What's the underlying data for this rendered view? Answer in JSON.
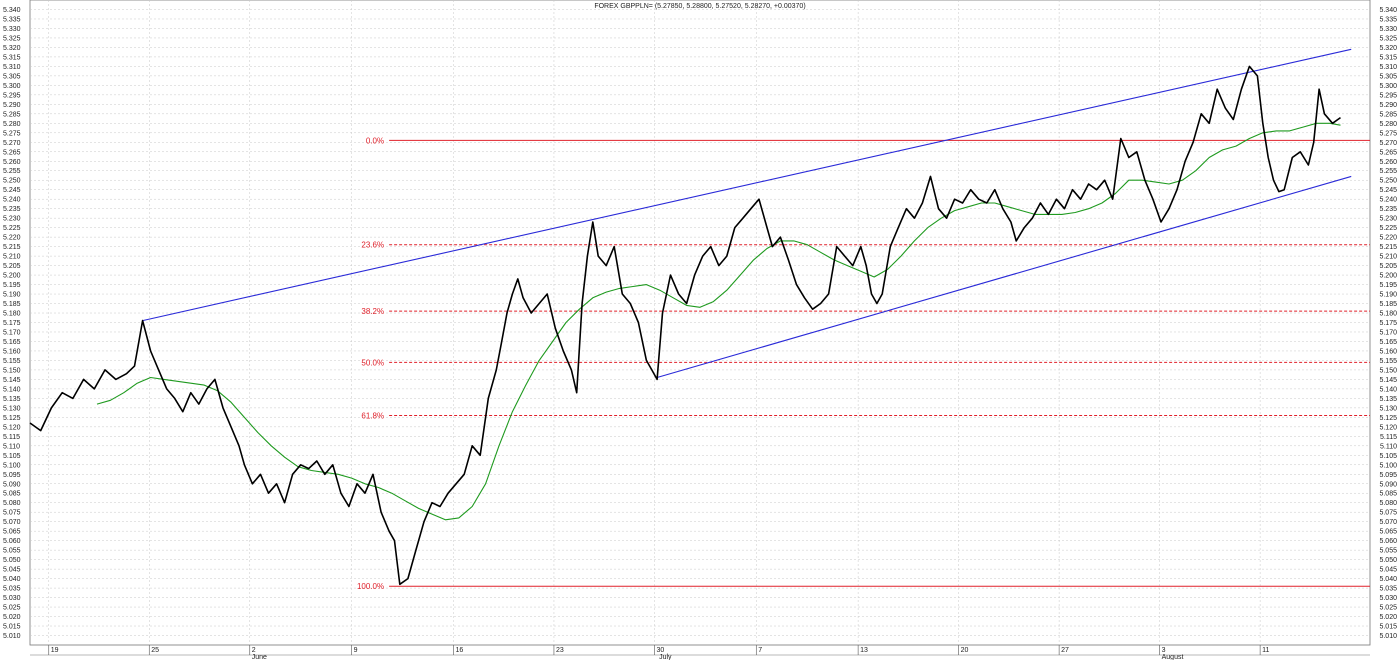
{
  "chart_data": {
    "type": "line",
    "title": "FOREX GBPPLN= (5.27850, 5.28800, 5.27520, 5.28270, +0.00370)",
    "ylim": [
      5.005,
      5.345
    ],
    "xlim": [
      0,
      100
    ],
    "y_ticks": [
      5.01,
      5.015,
      5.02,
      5.025,
      5.03,
      5.035,
      5.04,
      5.045,
      5.05,
      5.055,
      5.06,
      5.065,
      5.07,
      5.075,
      5.08,
      5.085,
      5.09,
      5.095,
      5.1,
      5.105,
      5.11,
      5.115,
      5.12,
      5.125,
      5.13,
      5.135,
      5.14,
      5.145,
      5.15,
      5.155,
      5.16,
      5.165,
      5.17,
      5.175,
      5.18,
      5.185,
      5.19,
      5.195,
      5.2,
      5.205,
      5.21,
      5.215,
      5.22,
      5.225,
      5.23,
      5.235,
      5.24,
      5.245,
      5.25,
      5.255,
      5.26,
      5.265,
      5.27,
      5.275,
      5.28,
      5.285,
      5.29,
      5.295,
      5.3,
      5.305,
      5.31,
      5.315,
      5.32,
      5.325,
      5.33,
      5.335,
      5.34
    ],
    "x_ticks": [
      {
        "x": 1.4,
        "label": "19"
      },
      {
        "x": 8.9,
        "label": "25"
      },
      {
        "x": 16.4,
        "label": "2"
      },
      {
        "x": 24.0,
        "label": "9"
      },
      {
        "x": 31.6,
        "label": "16"
      },
      {
        "x": 39.1,
        "label": "23"
      },
      {
        "x": 46.6,
        "label": "30"
      },
      {
        "x": 54.2,
        "label": "7"
      },
      {
        "x": 61.8,
        "label": "13"
      },
      {
        "x": 69.3,
        "label": "20"
      },
      {
        "x": 76.8,
        "label": "27"
      },
      {
        "x": 84.3,
        "label": "3"
      },
      {
        "x": 91.8,
        "label": "11"
      }
    ],
    "months": [
      {
        "x": 16.4,
        "label": "June"
      },
      {
        "x": 46.8,
        "label": "July"
      },
      {
        "x": 84.3,
        "label": "August"
      }
    ],
    "series": [
      {
        "type": "price",
        "color": "#000000",
        "points": [
          [
            0,
            5.122
          ],
          [
            0.8,
            5.118
          ],
          [
            1.6,
            5.13
          ],
          [
            2.4,
            5.138
          ],
          [
            3.2,
            5.135
          ],
          [
            4.0,
            5.145
          ],
          [
            4.8,
            5.14
          ],
          [
            5.6,
            5.15
          ],
          [
            6.4,
            5.145
          ],
          [
            7.2,
            5.148
          ],
          [
            7.8,
            5.152
          ],
          [
            8.4,
            5.176
          ],
          [
            9.0,
            5.16
          ],
          [
            9.6,
            5.15
          ],
          [
            10.2,
            5.14
          ],
          [
            10.8,
            5.135
          ],
          [
            11.4,
            5.128
          ],
          [
            12.0,
            5.138
          ],
          [
            12.6,
            5.132
          ],
          [
            13.2,
            5.14
          ],
          [
            13.8,
            5.145
          ],
          [
            14.4,
            5.13
          ],
          [
            15.0,
            5.12
          ],
          [
            15.6,
            5.11
          ],
          [
            16.0,
            5.1
          ],
          [
            16.6,
            5.09
          ],
          [
            17.2,
            5.095
          ],
          [
            17.8,
            5.085
          ],
          [
            18.4,
            5.09
          ],
          [
            19.0,
            5.08
          ],
          [
            19.6,
            5.095
          ],
          [
            20.2,
            5.1
          ],
          [
            20.8,
            5.098
          ],
          [
            21.4,
            5.102
          ],
          [
            22.0,
            5.095
          ],
          [
            22.6,
            5.1
          ],
          [
            23.2,
            5.085
          ],
          [
            23.8,
            5.078
          ],
          [
            24.4,
            5.09
          ],
          [
            25.0,
            5.085
          ],
          [
            25.6,
            5.095
          ],
          [
            26.2,
            5.075
          ],
          [
            26.8,
            5.065
          ],
          [
            27.2,
            5.06
          ],
          [
            27.6,
            5.037
          ],
          [
            28.2,
            5.04
          ],
          [
            28.8,
            5.055
          ],
          [
            29.4,
            5.07
          ],
          [
            30.0,
            5.08
          ],
          [
            30.6,
            5.078
          ],
          [
            31.2,
            5.085
          ],
          [
            31.8,
            5.09
          ],
          [
            32.4,
            5.095
          ],
          [
            33.0,
            5.11
          ],
          [
            33.6,
            5.105
          ],
          [
            34.2,
            5.135
          ],
          [
            34.8,
            5.15
          ],
          [
            35.2,
            5.165
          ],
          [
            35.6,
            5.18
          ],
          [
            36.0,
            5.19
          ],
          [
            36.4,
            5.198
          ],
          [
            36.8,
            5.188
          ],
          [
            37.4,
            5.18
          ],
          [
            38.0,
            5.185
          ],
          [
            38.6,
            5.19
          ],
          [
            39.2,
            5.172
          ],
          [
            39.8,
            5.16
          ],
          [
            40.4,
            5.15
          ],
          [
            40.8,
            5.138
          ],
          [
            41.2,
            5.185
          ],
          [
            41.6,
            5.21
          ],
          [
            42.0,
            5.228
          ],
          [
            42.4,
            5.21
          ],
          [
            43.0,
            5.205
          ],
          [
            43.6,
            5.215
          ],
          [
            44.2,
            5.19
          ],
          [
            44.8,
            5.185
          ],
          [
            45.4,
            5.175
          ],
          [
            46.0,
            5.155
          ],
          [
            46.4,
            5.15
          ],
          [
            46.8,
            5.145
          ],
          [
            47.2,
            5.18
          ],
          [
            47.8,
            5.2
          ],
          [
            48.4,
            5.19
          ],
          [
            49.0,
            5.185
          ],
          [
            49.6,
            5.2
          ],
          [
            50.2,
            5.21
          ],
          [
            50.8,
            5.215
          ],
          [
            51.4,
            5.205
          ],
          [
            52.0,
            5.21
          ],
          [
            52.6,
            5.225
          ],
          [
            53.2,
            5.23
          ],
          [
            53.8,
            5.235
          ],
          [
            54.4,
            5.24
          ],
          [
            55.0,
            5.225
          ],
          [
            55.4,
            5.215
          ],
          [
            56.0,
            5.22
          ],
          [
            56.6,
            5.208
          ],
          [
            57.2,
            5.195
          ],
          [
            57.8,
            5.188
          ],
          [
            58.4,
            5.182
          ],
          [
            59.0,
            5.185
          ],
          [
            59.6,
            5.19
          ],
          [
            60.2,
            5.215
          ],
          [
            60.8,
            5.21
          ],
          [
            61.4,
            5.205
          ],
          [
            62.0,
            5.215
          ],
          [
            62.4,
            5.205
          ],
          [
            62.8,
            5.19
          ],
          [
            63.2,
            5.185
          ],
          [
            63.6,
            5.19
          ],
          [
            64.2,
            5.215
          ],
          [
            64.8,
            5.225
          ],
          [
            65.4,
            5.235
          ],
          [
            66.0,
            5.23
          ],
          [
            66.6,
            5.238
          ],
          [
            67.2,
            5.252
          ],
          [
            67.8,
            5.235
          ],
          [
            68.4,
            5.23
          ],
          [
            69.0,
            5.24
          ],
          [
            69.6,
            5.238
          ],
          [
            70.2,
            5.245
          ],
          [
            70.8,
            5.24
          ],
          [
            71.4,
            5.238
          ],
          [
            72.0,
            5.245
          ],
          [
            72.6,
            5.235
          ],
          [
            73.2,
            5.228
          ],
          [
            73.6,
            5.218
          ],
          [
            74.2,
            5.225
          ],
          [
            74.8,
            5.23
          ],
          [
            75.4,
            5.238
          ],
          [
            76.0,
            5.232
          ],
          [
            76.6,
            5.24
          ],
          [
            77.2,
            5.235
          ],
          [
            77.8,
            5.245
          ],
          [
            78.4,
            5.24
          ],
          [
            79.0,
            5.248
          ],
          [
            79.6,
            5.245
          ],
          [
            80.2,
            5.25
          ],
          [
            80.8,
            5.24
          ],
          [
            81.4,
            5.272
          ],
          [
            82.0,
            5.262
          ],
          [
            82.6,
            5.265
          ],
          [
            83.2,
            5.25
          ],
          [
            83.8,
            5.24
          ],
          [
            84.4,
            5.228
          ],
          [
            85.0,
            5.235
          ],
          [
            85.6,
            5.245
          ],
          [
            86.2,
            5.26
          ],
          [
            86.8,
            5.27
          ],
          [
            87.4,
            5.285
          ],
          [
            88.0,
            5.28
          ],
          [
            88.6,
            5.298
          ],
          [
            89.2,
            5.288
          ],
          [
            89.8,
            5.282
          ],
          [
            90.4,
            5.298
          ],
          [
            91.0,
            5.31
          ],
          [
            91.6,
            5.305
          ],
          [
            92.0,
            5.28
          ],
          [
            92.4,
            5.262
          ],
          [
            92.8,
            5.25
          ],
          [
            93.2,
            5.244
          ],
          [
            93.6,
            5.245
          ],
          [
            94.2,
            5.262
          ],
          [
            94.8,
            5.265
          ],
          [
            95.4,
            5.258
          ],
          [
            95.8,
            5.27
          ],
          [
            96.2,
            5.298
          ],
          [
            96.6,
            5.285
          ],
          [
            97.2,
            5.28
          ],
          [
            97.8,
            5.283
          ]
        ]
      },
      {
        "type": "moving-average",
        "color": "#1f9a1f",
        "points": [
          [
            5.0,
            5.132
          ],
          [
            6.0,
            5.134
          ],
          [
            7.0,
            5.138
          ],
          [
            8.0,
            5.143
          ],
          [
            9.0,
            5.146
          ],
          [
            10.0,
            5.145
          ],
          [
            11.0,
            5.144
          ],
          [
            12.0,
            5.143
          ],
          [
            13.0,
            5.142
          ],
          [
            14.0,
            5.139
          ],
          [
            15.0,
            5.133
          ],
          [
            16.0,
            5.125
          ],
          [
            17.0,
            5.117
          ],
          [
            18.0,
            5.11
          ],
          [
            19.0,
            5.104
          ],
          [
            20.0,
            5.099
          ],
          [
            21.0,
            5.097
          ],
          [
            22.0,
            5.096
          ],
          [
            23.0,
            5.095
          ],
          [
            24.0,
            5.093
          ],
          [
            25.0,
            5.09
          ],
          [
            26.0,
            5.088
          ],
          [
            27.0,
            5.085
          ],
          [
            28.0,
            5.081
          ],
          [
            29.0,
            5.077
          ],
          [
            30.0,
            5.074
          ],
          [
            31.0,
            5.071
          ],
          [
            32.0,
            5.072
          ],
          [
            33.0,
            5.078
          ],
          [
            34.0,
            5.09
          ],
          [
            35.0,
            5.11
          ],
          [
            36.0,
            5.128
          ],
          [
            37.0,
            5.142
          ],
          [
            38.0,
            5.155
          ],
          [
            39.0,
            5.165
          ],
          [
            40.0,
            5.175
          ],
          [
            41.0,
            5.182
          ],
          [
            42.0,
            5.188
          ],
          [
            43.0,
            5.191
          ],
          [
            44.0,
            5.193
          ],
          [
            45.0,
            5.194
          ],
          [
            46.0,
            5.195
          ],
          [
            47.0,
            5.192
          ],
          [
            48.0,
            5.188
          ],
          [
            49.0,
            5.184
          ],
          [
            50.0,
            5.183
          ],
          [
            51.0,
            5.186
          ],
          [
            52.0,
            5.192
          ],
          [
            53.0,
            5.2
          ],
          [
            54.0,
            5.208
          ],
          [
            55.0,
            5.214
          ],
          [
            56.0,
            5.218
          ],
          [
            57.0,
            5.218
          ],
          [
            58.0,
            5.216
          ],
          [
            59.0,
            5.212
          ],
          [
            60.0,
            5.208
          ],
          [
            61.0,
            5.205
          ],
          [
            62.0,
            5.202
          ],
          [
            63.0,
            5.199
          ],
          [
            64.0,
            5.203
          ],
          [
            65.0,
            5.21
          ],
          [
            66.0,
            5.218
          ],
          [
            67.0,
            5.225
          ],
          [
            68.0,
            5.23
          ],
          [
            69.0,
            5.234
          ],
          [
            70.0,
            5.236
          ],
          [
            71.0,
            5.238
          ],
          [
            72.0,
            5.238
          ],
          [
            73.0,
            5.236
          ],
          [
            74.0,
            5.234
          ],
          [
            75.0,
            5.232
          ],
          [
            76.0,
            5.232
          ],
          [
            77.0,
            5.232
          ],
          [
            78.0,
            5.233
          ],
          [
            79.0,
            5.235
          ],
          [
            80.0,
            5.238
          ],
          [
            81.0,
            5.243
          ],
          [
            82.0,
            5.25
          ],
          [
            83.0,
            5.25
          ],
          [
            84.0,
            5.249
          ],
          [
            85.0,
            5.248
          ],
          [
            86.0,
            5.25
          ],
          [
            87.0,
            5.255
          ],
          [
            88.0,
            5.262
          ],
          [
            89.0,
            5.266
          ],
          [
            90.0,
            5.268
          ],
          [
            91.0,
            5.272
          ],
          [
            92.0,
            5.275
          ],
          [
            93.0,
            5.276
          ],
          [
            94.0,
            5.276
          ],
          [
            95.0,
            5.278
          ],
          [
            96.0,
            5.28
          ],
          [
            97.0,
            5.28
          ],
          [
            97.8,
            5.279
          ]
        ]
      }
    ],
    "channel": {
      "color": "#2a2ad8",
      "upper": [
        [
          8.4,
          5.176
        ],
        [
          98.6,
          5.319
        ]
      ],
      "lower": [
        [
          46.8,
          5.146
        ],
        [
          98.6,
          5.252
        ]
      ]
    },
    "fibonacci": {
      "color": "#e0202a",
      "x_start": 26.8,
      "levels": [
        {
          "label": "0.0%",
          "value": 5.271,
          "style": "solid"
        },
        {
          "label": "23.6%",
          "value": 5.216,
          "style": "dashed"
        },
        {
          "label": "38.2%",
          "value": 5.181,
          "style": "dashed"
        },
        {
          "label": "50.0%",
          "value": 5.154,
          "style": "dashed"
        },
        {
          "label": "61.8%",
          "value": 5.126,
          "style": "dashed"
        },
        {
          "label": "100.0%",
          "value": 5.036,
          "style": "solid"
        }
      ]
    }
  }
}
